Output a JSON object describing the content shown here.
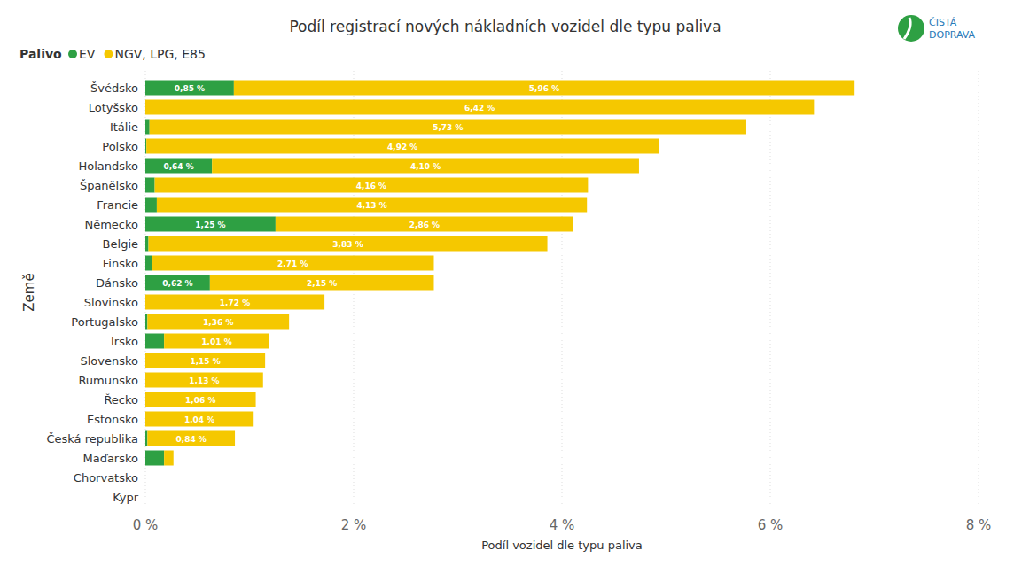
{
  "chart_data": {
    "type": "bar",
    "orientation": "horizontal",
    "stacked": true,
    "data_labels": true,
    "grid": true,
    "legend": "top-left",
    "title": "Podíl registrací nových nákladních vozidel dle typu paliva",
    "legend_title": "Palivo",
    "annotations": [
      "ČISTÁ",
      "DOPRAVA"
    ],
    "x_label": "Podíl vozidel dle typu paliva",
    "y_label": "Země",
    "categories": [
      "Švédsko",
      "Lotyšsko",
      "Itálie",
      "Polsko",
      "Holandsko",
      "Španělsko",
      "Francie",
      "Německo",
      "Belgie",
      "Finsko",
      "Dánsko",
      "Slovinsko",
      "Portugalsko",
      "Irsko",
      "Slovensko",
      "Rumunsko",
      "Řecko",
      "Estonsko",
      "Česká republika",
      "Maďarsko",
      "Chorvatsko",
      "Kypr"
    ],
    "series": [
      {
        "name": "EV",
        "color": "#2ea043",
        "values": [
          0.85,
          0,
          0.04,
          0.01,
          0.64,
          0.09,
          0.11,
          1.25,
          0.03,
          0.06,
          0.62,
          0,
          0.02,
          0.18,
          0,
          0,
          0,
          0,
          0.02,
          0.18,
          0,
          0
        ],
        "value_labels": [
          "0,85 %",
          null,
          null,
          null,
          "0,64 %",
          null,
          null,
          "1,25 %",
          null,
          null,
          "0,62 %",
          null,
          null,
          null,
          null,
          null,
          null,
          null,
          null,
          null,
          null,
          null
        ]
      },
      {
        "name": "NGV, LPG, E85",
        "color": "#f5c800",
        "values": [
          5.96,
          6.42,
          5.73,
          4.92,
          4.1,
          4.16,
          4.13,
          2.86,
          3.83,
          2.71,
          2.15,
          1.72,
          1.36,
          1.01,
          1.15,
          1.13,
          1.06,
          1.04,
          0.84,
          0.09,
          0,
          0
        ],
        "value_labels": [
          "5,96 %",
          "6,42 %",
          "5,73 %",
          "4,92 %",
          "4,10 %",
          "4,16 %",
          "4,13 %",
          "2,86 %",
          "3,83 %",
          "2,71 %",
          "2,15 %",
          "1,72 %",
          "1,36 %",
          "1,01 %",
          "1,15 %",
          "1,13 %",
          "1,06 %",
          "1,04 %",
          "0,84 %",
          null,
          null,
          null
        ]
      }
    ],
    "xlim": [
      0,
      8
    ],
    "xticks": [
      {
        "value": 0,
        "label": "0 %"
      },
      {
        "value": 2,
        "label": "2 %"
      },
      {
        "value": 4,
        "label": "4 %"
      },
      {
        "value": 6,
        "label": "6 %"
      },
      {
        "value": 8,
        "label": "8 %"
      }
    ]
  }
}
